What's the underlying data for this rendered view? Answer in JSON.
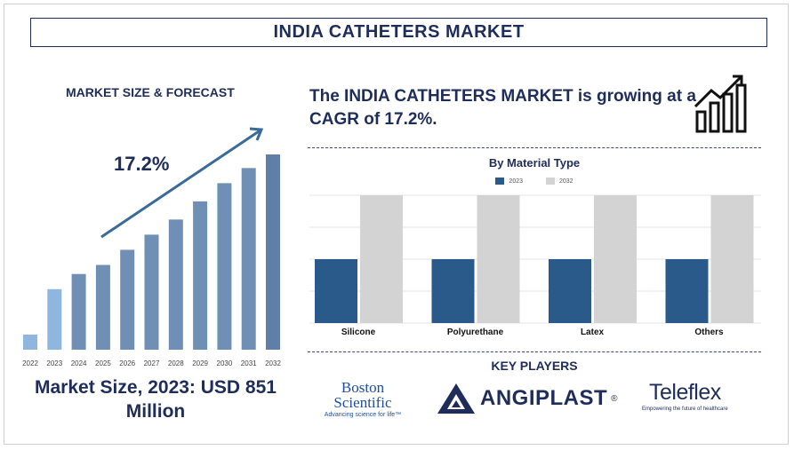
{
  "title": "INDIA CATHETERS MARKET",
  "left_panel": {
    "heading": "MARKET SIZE & FORECAST",
    "growth_label": "17.2%",
    "market_size_text": "Market Size, 2023: USD 851 Million"
  },
  "right_panel": {
    "cagr_text": "The INDIA CATHETERS MARKET is growing at a CAGR of 17.2%.",
    "players_title": "KEY PLAYERS"
  },
  "chart_data": [
    {
      "type": "bar",
      "categories": [
        "2022",
        "2023",
        "2024",
        "2025",
        "2026",
        "2027",
        "2028",
        "2029",
        "2030",
        "2031",
        "2032"
      ],
      "values": [
        1,
        4,
        5,
        5.6,
        6.6,
        7.6,
        8.6,
        9.8,
        11,
        12,
        12.9
      ],
      "colors": [
        "#8fb6de",
        "#8fb6de",
        "#6f8fb5",
        "#6f8fb5",
        "#6f8fb5",
        "#6f8fb5",
        "#6f8fb5",
        "#6f8fb5",
        "#6f8fb5",
        "#6f8fb5",
        "#5f7fa8"
      ],
      "arrow_color": "#3a6b98"
    },
    {
      "type": "bar",
      "title": "By Material Type",
      "categories": [
        "Silicone",
        "Polyurethane",
        "Latex",
        "Others"
      ],
      "series": [
        {
          "name": "2023",
          "values": [
            1,
            1,
            1,
            1
          ],
          "color": "#2a5a8a"
        },
        {
          "name": "2032",
          "values": [
            2,
            2,
            2,
            2
          ],
          "color": "#d3d3d3"
        }
      ],
      "ylim": [
        0,
        2.0
      ]
    }
  ],
  "key_players": [
    {
      "line1": "Boston",
      "line2": "Scientific",
      "tagline": "Advancing science for life™"
    },
    {
      "name": "ANGIPLAST",
      "mark": "®"
    },
    {
      "name": "Teleflex",
      "tagline": "Empowering the future of healthcare"
    }
  ]
}
